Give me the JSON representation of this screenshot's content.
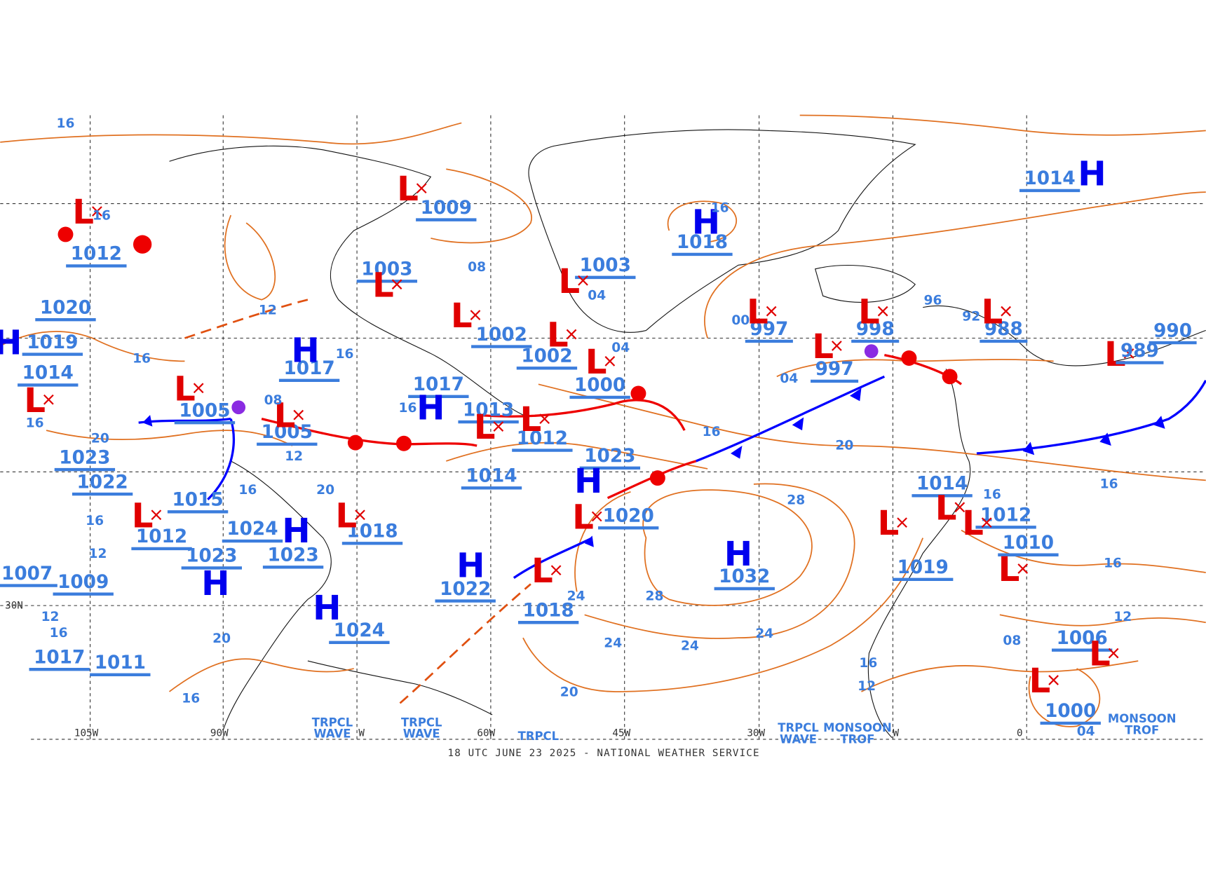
{
  "footer": "18 UTC JUNE 23 2025 - NATIONAL WEATHER SERVICE",
  "pressure_centers": [
    {
      "type": "L",
      "pressure": "1012"
    },
    {
      "type": "L",
      "pressure": "1009"
    },
    {
      "type": "H",
      "pressure": "1014"
    },
    {
      "type": "H",
      "pressure": "1018"
    },
    {
      "type": "L",
      "pressure": "1003"
    },
    {
      "type": "L",
      "pressure": "1003"
    },
    {
      "type": "H",
      "pressure": "1020"
    },
    {
      "type": "H",
      "pressure": "1019"
    },
    {
      "type": "L",
      "pressure": "1002"
    },
    {
      "type": "L",
      "pressure": "1002"
    },
    {
      "type": "L",
      "pressure": "1000"
    },
    {
      "type": "L",
      "pressure": "997"
    },
    {
      "type": "L",
      "pressure": "998"
    },
    {
      "type": "L",
      "pressure": "997"
    },
    {
      "type": "L",
      "pressure": "988"
    },
    {
      "type": "L",
      "pressure": "990"
    },
    {
      "type": "L",
      "pressure": "989"
    },
    {
      "type": "H",
      "pressure": "1017"
    },
    {
      "type": "L",
      "pressure": "1014"
    },
    {
      "type": "L",
      "pressure": "1005"
    },
    {
      "type": "H",
      "pressure": "1017"
    },
    {
      "type": "L",
      "pressure": "1013"
    },
    {
      "type": "L",
      "pressure": "1005"
    },
    {
      "type": "L",
      "pressure": "1012"
    },
    {
      "type": "H",
      "pressure": "1023"
    },
    {
      "type": "H",
      "pressure": "1023"
    },
    {
      "type": "H",
      "pressure": "1022"
    },
    {
      "type": "L",
      "pressure": "1014"
    },
    {
      "type": "L",
      "pressure": "1015"
    },
    {
      "type": "L",
      "pressure": "1020"
    },
    {
      "type": "H",
      "pressure": "1024"
    },
    {
      "type": "L",
      "pressure": "1018"
    },
    {
      "type": "L",
      "pressure": "1014"
    },
    {
      "type": "L",
      "pressure": "1012"
    },
    {
      "type": "L",
      "pressure": "1012"
    },
    {
      "type": "L",
      "pressure": "1010"
    },
    {
      "type": "H",
      "pressure": "1023"
    },
    {
      "type": "H",
      "pressure": "1023"
    },
    {
      "type": "H",
      "pressure": "1032"
    },
    {
      "type": "H",
      "pressure": "1022"
    },
    {
      "type": "L",
      "pressure": "1019"
    },
    {
      "type": "L",
      "pressure": "1018"
    },
    {
      "type": "H",
      "pressure": "1024"
    },
    {
      "type": "L",
      "pressure": "1006"
    },
    {
      "type": "L",
      "pressure": "1017"
    },
    {
      "type": "L",
      "pressure": "1011"
    },
    {
      "type": "L",
      "pressure": "1009"
    },
    {
      "type": "L",
      "pressure": "1007"
    },
    {
      "type": "L",
      "pressure": "1000"
    }
  ],
  "isobar_labels": [
    "16",
    "16",
    "12",
    "08",
    "04",
    "04",
    "16",
    "00",
    "04",
    "96",
    "92",
    "16",
    "20",
    "28",
    "28",
    "24",
    "24",
    "24",
    "24",
    "20",
    "16",
    "16",
    "16",
    "12",
    "08",
    "04",
    "16",
    "12",
    "16",
    "20",
    "16",
    "16",
    "16",
    "12",
    "20",
    "16",
    "12",
    "16",
    "16",
    "12",
    "16",
    "08",
    "20"
  ],
  "longitude_labels": [
    "105W",
    "90W",
    "W",
    "60W",
    "45W",
    "30W",
    "W",
    "0"
  ],
  "latitude_labels": [
    "30N"
  ],
  "feature_labels": [
    [
      "TRPCL",
      "WAVE"
    ],
    [
      "TRPCL",
      "WAVE"
    ],
    [
      "TRPCL"
    ],
    [
      "TRPCL",
      "WAVE"
    ],
    [
      "MONSOON",
      "TROF"
    ],
    [
      "MONSOON",
      "TROF"
    ]
  ]
}
